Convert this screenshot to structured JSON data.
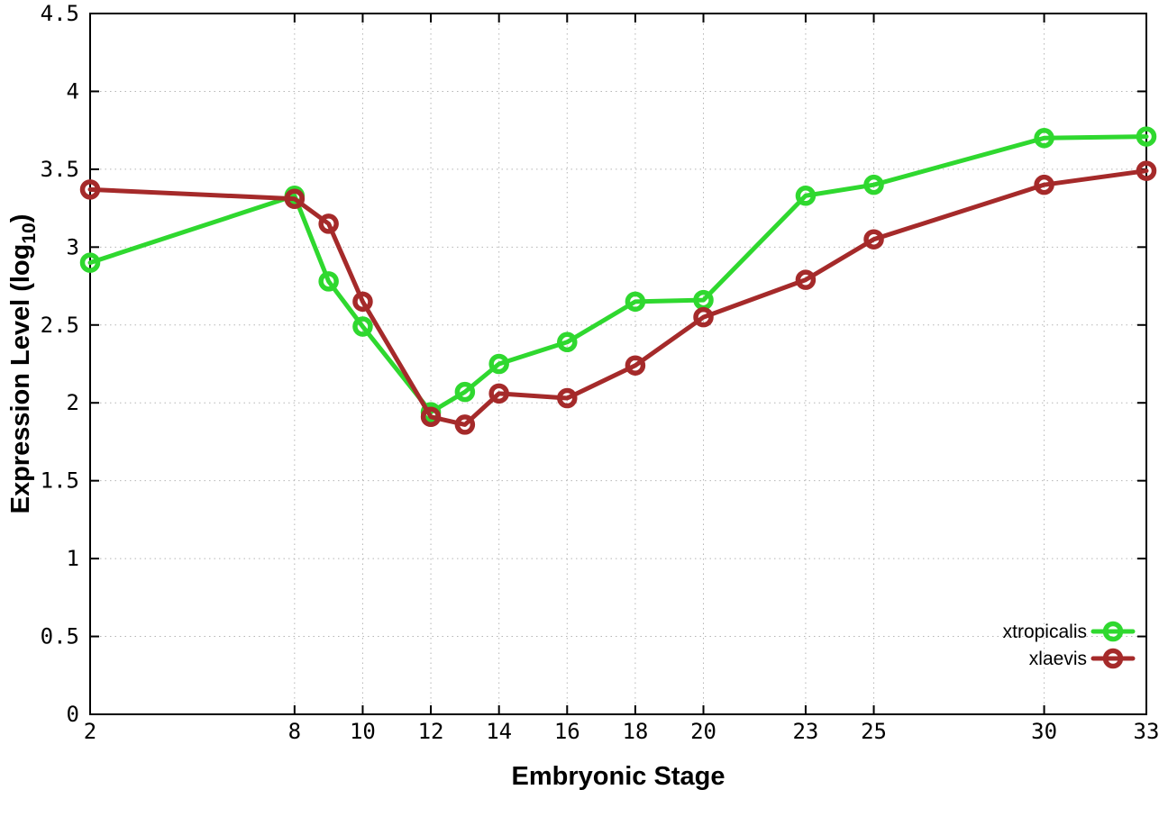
{
  "chart_data": {
    "type": "line",
    "title": "",
    "xlabel": "Embryonic Stage",
    "ylabel": {
      "text": "Expression Level (log",
      "sub": "10",
      "suffix": ")"
    },
    "xlim": [
      2,
      33
    ],
    "ylim": [
      0,
      4.5
    ],
    "x_ticks": [
      2,
      8,
      10,
      12,
      14,
      16,
      18,
      20,
      23,
      25,
      30,
      33
    ],
    "y_ticks": [
      0,
      0.5,
      1,
      1.5,
      2,
      2.5,
      3,
      3.5,
      4,
      4.5
    ],
    "grid": true,
    "legend_position": "bottom-right",
    "x": [
      2,
      8,
      9,
      10,
      12,
      13,
      14,
      16,
      18,
      20,
      23,
      25,
      30,
      33
    ],
    "series": [
      {
        "name": "xtropicalis",
        "color": "#2fd82f",
        "values": [
          2.9,
          3.33,
          2.78,
          2.49,
          1.94,
          2.07,
          2.25,
          2.39,
          2.65,
          2.66,
          3.33,
          3.4,
          3.7,
          3.71
        ]
      },
      {
        "name": "xlaevis",
        "color": "#a52a2a",
        "values": [
          3.37,
          3.31,
          3.15,
          2.65,
          1.91,
          1.86,
          2.06,
          2.03,
          2.24,
          2.55,
          2.79,
          3.05,
          3.4,
          3.49
        ]
      }
    ]
  },
  "colors": {
    "background": "#ffffff",
    "axis": "#000000",
    "grid": "#b5b5b5",
    "tick_text": "#000000"
  }
}
